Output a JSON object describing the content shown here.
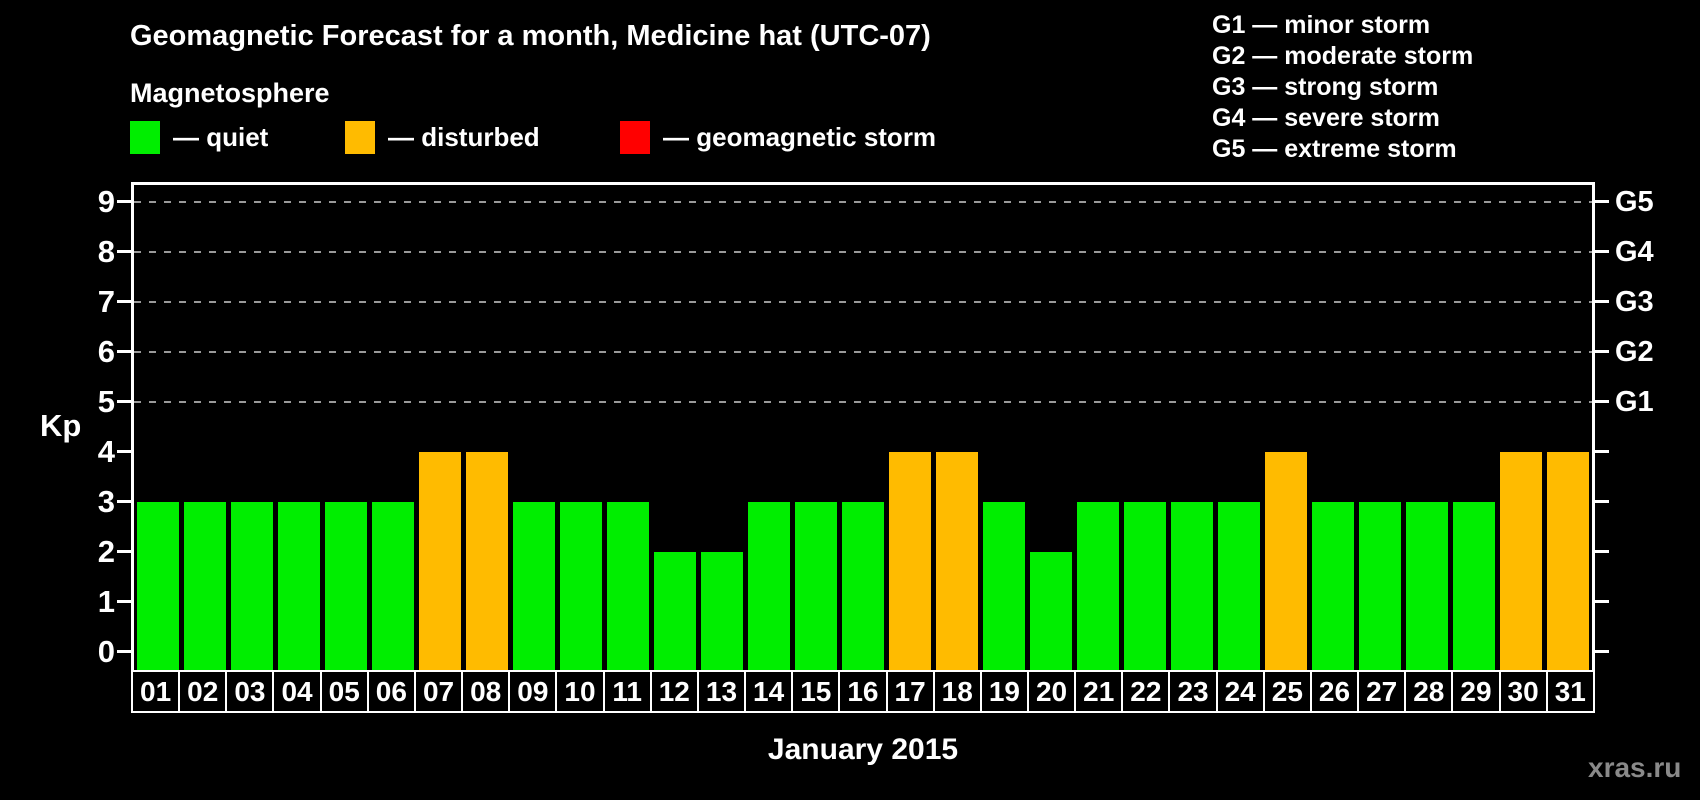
{
  "header": {
    "title": "Geomagnetic Forecast for a month, Medicine hat (UTC-07)",
    "subtitle": "Magnetosphere"
  },
  "legend": {
    "items": [
      {
        "status": "quiet",
        "label": "— quiet",
        "color": "#00ee00"
      },
      {
        "status": "disturbed",
        "label": "— disturbed",
        "color": "#ffbb00"
      },
      {
        "status": "storm",
        "label": "— geomagnetic storm",
        "color": "#ff0000"
      }
    ]
  },
  "g_scale_legend": {
    "items": [
      "G1 — minor storm",
      "G2 — moderate storm",
      "G3 — strong storm",
      "G4 — severe storm",
      "G5 — extreme storm"
    ]
  },
  "watermark": "xras.ru",
  "chart_data": {
    "type": "bar",
    "title": "Geomagnetic Forecast for a month, Medicine hat (UTC-07)",
    "xlabel": "January 2015",
    "ylabel": "Kp",
    "ylim": [
      0,
      9
    ],
    "y_ticks": [
      0,
      1,
      2,
      3,
      4,
      5,
      6,
      7,
      8,
      9
    ],
    "gridlines_at_kp": [
      5,
      6,
      7,
      8,
      9
    ],
    "grid": "horizontal dashed gray lines at Kp 5-9 only",
    "legend_position": "top-left",
    "right_axis": [
      {
        "kp": 5,
        "label": "G1"
      },
      {
        "kp": 6,
        "label": "G2"
      },
      {
        "kp": 7,
        "label": "G3"
      },
      {
        "kp": 8,
        "label": "G4"
      },
      {
        "kp": 9,
        "label": "G5"
      }
    ],
    "categories": [
      "01",
      "02",
      "03",
      "04",
      "05",
      "06",
      "07",
      "08",
      "09",
      "10",
      "11",
      "12",
      "13",
      "14",
      "15",
      "16",
      "17",
      "18",
      "19",
      "20",
      "21",
      "22",
      "23",
      "24",
      "25",
      "26",
      "27",
      "28",
      "29",
      "30",
      "31"
    ],
    "series": [
      {
        "name": "Kp forecast",
        "values": [
          3,
          3,
          3,
          3,
          3,
          3,
          4,
          4,
          3,
          3,
          3,
          2,
          2,
          3,
          3,
          3,
          4,
          4,
          3,
          2,
          3,
          3,
          3,
          3,
          4,
          3,
          3,
          3,
          3,
          4,
          4
        ]
      }
    ],
    "statuses": [
      "quiet",
      "quiet",
      "quiet",
      "quiet",
      "quiet",
      "quiet",
      "disturbed",
      "disturbed",
      "quiet",
      "quiet",
      "quiet",
      "quiet",
      "quiet",
      "quiet",
      "quiet",
      "quiet",
      "disturbed",
      "disturbed",
      "quiet",
      "quiet",
      "quiet",
      "quiet",
      "quiet",
      "quiet",
      "disturbed",
      "quiet",
      "quiet",
      "quiet",
      "quiet",
      "disturbed",
      "disturbed"
    ],
    "colors": {
      "quiet": "#00ee00",
      "disturbed": "#ffbb00",
      "storm": "#ff0000"
    }
  }
}
